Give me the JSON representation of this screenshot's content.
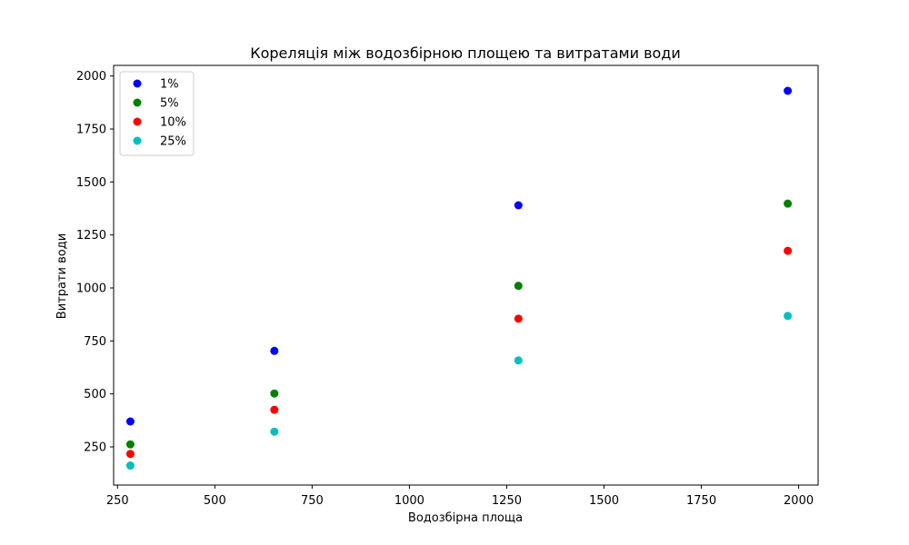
{
  "chart_data": {
    "type": "scatter",
    "title": "Кореляція між водозбірною площею та витратами води",
    "xlabel": "Водозбірна площа",
    "ylabel": "Витрати води",
    "xlim": [
      240,
      2050
    ],
    "ylim": [
      70,
      2050
    ],
    "xticks": [
      250,
      500,
      750,
      1000,
      1250,
      1500,
      1750,
      2000
    ],
    "yticks": [
      250,
      500,
      750,
      1000,
      1250,
      1500,
      1750,
      2000
    ],
    "grid": false,
    "legend_position": "top-left",
    "x": [
      283,
      653,
      1280,
      1972
    ],
    "series": [
      {
        "name": "1%",
        "color": "#0000ff",
        "values": [
          370,
          703,
          1390,
          1930
        ]
      },
      {
        "name": "5%",
        "color": "#008000",
        "values": [
          262,
          502,
          1010,
          1398
        ]
      },
      {
        "name": "10%",
        "color": "#ff0000",
        "values": [
          217,
          425,
          855,
          1175
        ]
      },
      {
        "name": "25%",
        "color": "#00bfbf",
        "values": [
          162,
          322,
          658,
          868
        ]
      }
    ]
  }
}
